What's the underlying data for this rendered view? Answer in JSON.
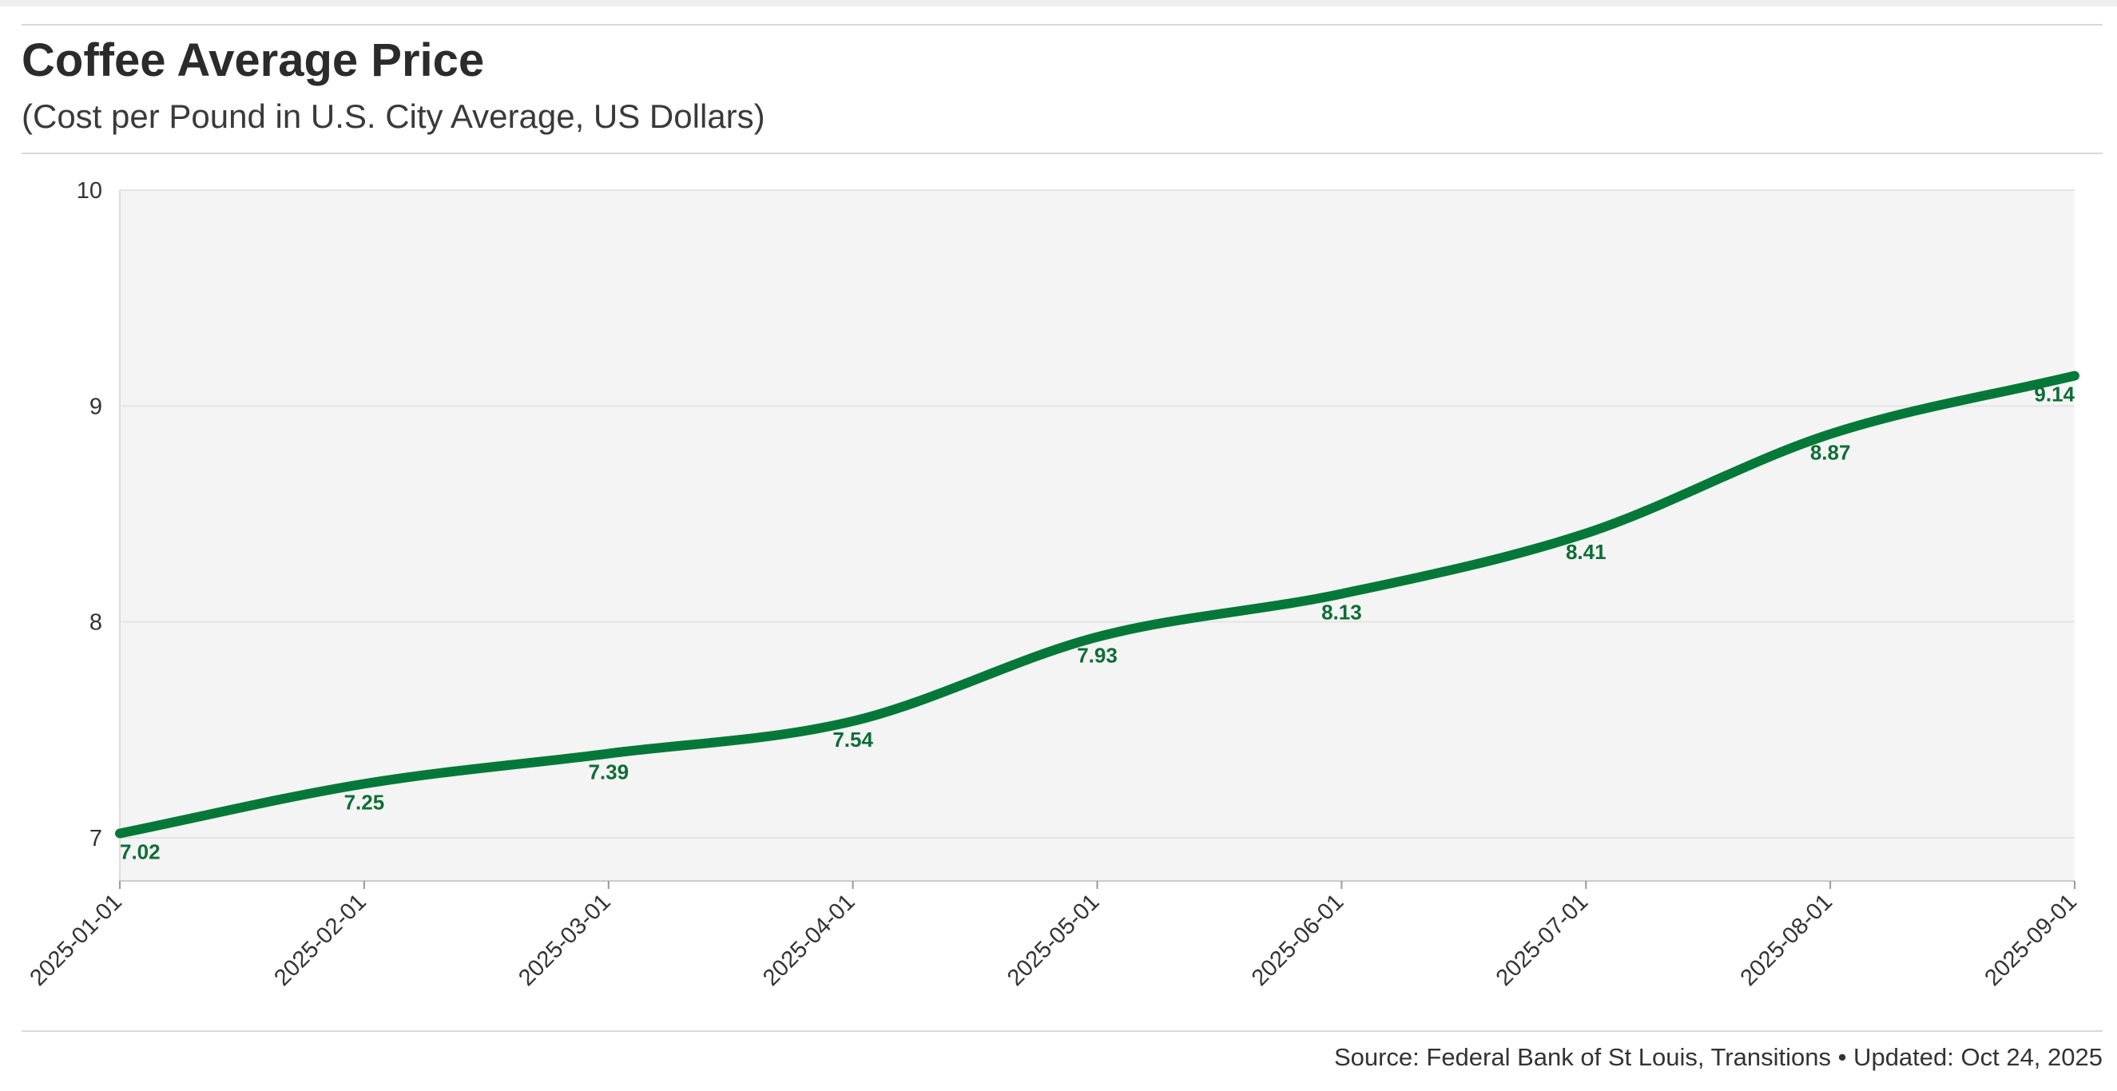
{
  "header": {
    "title": "Coffee Average Price",
    "subtitle": "(Cost per Pound in U.S. City Average, US Dollars)"
  },
  "footer": {
    "source": "Source: Federal Bank of St Louis, Transitions • Updated: Oct 24, 2025"
  },
  "colors": {
    "line": "#047838",
    "data_label": "#0d6e35",
    "plot_background": "#f4f4f4",
    "gridline": "#e4e4e4"
  },
  "chart_data": {
    "type": "line",
    "title": "Coffee Average Price",
    "subtitle": "(Cost per Pound in U.S. City Average, US Dollars)",
    "x": [
      "2025-01-01",
      "2025-02-01",
      "2025-03-01",
      "2025-04-01",
      "2025-05-01",
      "2025-06-01",
      "2025-07-01",
      "2025-08-01",
      "2025-09-01"
    ],
    "series": [
      {
        "values": [
          7.02,
          7.25,
          7.39,
          7.54,
          7.93,
          8.13,
          8.41,
          8.87,
          9.14
        ],
        "labels": [
          "7.02",
          "7.25",
          "7.39",
          "7.54",
          "7.93",
          "8.13",
          "8.41",
          "8.87",
          "9.14"
        ]
      }
    ],
    "ylim": [
      6.8,
      10
    ],
    "yticks": [
      7,
      8,
      9,
      10
    ],
    "ytick_labels": [
      "7",
      "8",
      "9",
      "10"
    ],
    "grid": true,
    "legend": "none",
    "xlabel": "",
    "ylabel": ""
  }
}
